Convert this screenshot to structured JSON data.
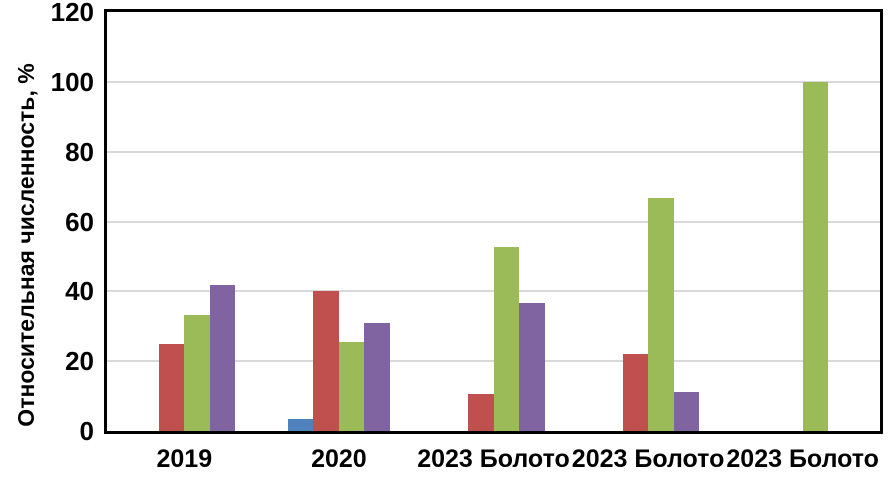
{
  "figure": {
    "background_color": "#FFFFFF",
    "plot_border_color": "#000000",
    "gridline_color": "#D9D9D9",
    "text_color": "#000000"
  },
  "chart_data": {
    "type": "bar",
    "title": "",
    "xlabel": "",
    "ylabel": "Относительная численность, %",
    "ylim": [
      0,
      120
    ],
    "yticks": [
      0,
      20,
      40,
      60,
      80,
      100,
      120
    ],
    "grid": true,
    "legend": false,
    "categories": [
      "2019",
      "2020",
      "2023 Болото",
      "2023 Болото",
      "2023 Болото"
    ],
    "series": [
      {
        "name": "series-1-blue",
        "color": "#4F81BD",
        "values": [
          0,
          3.4,
          0,
          0,
          0
        ]
      },
      {
        "name": "series-2-red",
        "color": "#C0504D",
        "values": [
          25.0,
          40.0,
          10.5,
          22.2,
          0
        ]
      },
      {
        "name": "series-3-green",
        "color": "#9BBB59",
        "values": [
          33.3,
          25.5,
          52.6,
          66.7,
          100.0
        ]
      },
      {
        "name": "series-4-purple",
        "color": "#8064A2",
        "values": [
          41.7,
          31.0,
          36.8,
          11.1,
          0
        ]
      }
    ]
  }
}
